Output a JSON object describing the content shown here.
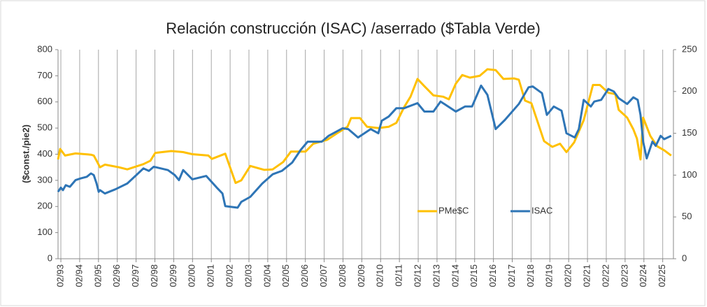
{
  "chart_data": {
    "type": "line",
    "title": "Relación construcción (ISAC) /aserrado ($Tabla Verde)",
    "y_label": "($const./pie2)",
    "xlim": [
      1992.93,
      2025.65
    ],
    "xticks": [
      {
        "value": 1993.08,
        "label": "02/93"
      },
      {
        "value": 1994.08,
        "label": "02/94"
      },
      {
        "value": 1995.08,
        "label": "02/95"
      },
      {
        "value": 1996.08,
        "label": "02/96"
      },
      {
        "value": 1997.08,
        "label": "02/97"
      },
      {
        "value": 1998.08,
        "label": "02/98"
      },
      {
        "value": 1999.08,
        "label": "02/99"
      },
      {
        "value": 2000.08,
        "label": "02/00"
      },
      {
        "value": 2001.08,
        "label": "02/01"
      },
      {
        "value": 2002.08,
        "label": "02/02"
      },
      {
        "value": 2003.08,
        "label": "02/03"
      },
      {
        "value": 2004.08,
        "label": "02/04"
      },
      {
        "value": 2005.08,
        "label": "02/05"
      },
      {
        "value": 2006.08,
        "label": "02/06"
      },
      {
        "value": 2007.08,
        "label": "02/07"
      },
      {
        "value": 2008.08,
        "label": "02/08"
      },
      {
        "value": 2009.08,
        "label": "02/09"
      },
      {
        "value": 2010.08,
        "label": "02/10"
      },
      {
        "value": 2011.08,
        "label": "02/11"
      },
      {
        "value": 2012.08,
        "label": "02/12"
      },
      {
        "value": 2013.08,
        "label": "02/13"
      },
      {
        "value": 2014.08,
        "label": "02/14"
      },
      {
        "value": 2015.08,
        "label": "02/15"
      },
      {
        "value": 2016.08,
        "label": "02/16"
      },
      {
        "value": 2017.08,
        "label": "02/17"
      },
      {
        "value": 2018.08,
        "label": "02/18"
      },
      {
        "value": 2019.08,
        "label": "02/19"
      },
      {
        "value": 2020.08,
        "label": "02/20"
      },
      {
        "value": 2021.08,
        "label": "02/21"
      },
      {
        "value": 2022.08,
        "label": "02/22"
      },
      {
        "value": 2023.08,
        "label": "02/23"
      },
      {
        "value": 2024.08,
        "label": "02/24"
      },
      {
        "value": 2025.08,
        "label": "02/25"
      }
    ],
    "ylim": [
      0,
      800
    ],
    "yticks": [
      0,
      100,
      200,
      300,
      400,
      500,
      600,
      700,
      800
    ],
    "y2lim": [
      0,
      250
    ],
    "y2ticks": [
      0,
      50,
      100,
      150,
      200,
      250
    ],
    "grid": "x",
    "series": [
      {
        "name": "PMe$C",
        "color": "#FFC000",
        "x": [
          1992.93,
          1993.04,
          1993.3,
          1993.86,
          1994.68,
          1994.83,
          1994.98,
          1995.16,
          1995.42,
          1996.17,
          1996.61,
          1997.47,
          1997.84,
          1998.1,
          1998.95,
          1999.58,
          2000.07,
          2000.92,
          2001.11,
          2001.82,
          2002.37,
          2002.67,
          2003.15,
          2003.9,
          2004.34,
          2004.9,
          2005.31,
          2006.09,
          2006.5,
          2007.24,
          2007.76,
          2008.32,
          2008.51,
          2008.99,
          2009.36,
          2009.96,
          2010.51,
          2010.92,
          2011.33,
          2011.67,
          2012.04,
          2012.41,
          2012.89,
          2013.41,
          2013.71,
          2014.08,
          2014.42,
          2014.83,
          2015.35,
          2015.76,
          2016.2,
          2016.61,
          2017.17,
          2017.43,
          2017.76,
          2018.1,
          2018.77,
          2019.21,
          2019.62,
          2019.96,
          2020.37,
          2020.88,
          2021.37,
          2021.74,
          2022.19,
          2022.56,
          2022.74,
          2023.19,
          2023.52,
          2023.71,
          2023.9,
          2024.04,
          2024.42,
          2024.79,
          2025.16,
          2025.53
        ],
        "values": [
          380,
          420,
          395,
          403,
          398,
          395,
          375,
          350,
          360,
          350,
          342,
          362,
          375,
          405,
          412,
          408,
          400,
          395,
          382,
          402,
          290,
          300,
          355,
          340,
          342,
          370,
          410,
          410,
          440,
          455,
          480,
          505,
          538,
          538,
          505,
          500,
          505,
          520,
          580,
          620,
          688,
          660,
          625,
          620,
          610,
          670,
          703,
          693,
          700,
          725,
          722,
          688,
          690,
          685,
          605,
          595,
          450,
          428,
          440,
          408,
          445,
          530,
          665,
          665,
          635,
          630,
          570,
          540,
          495,
          460,
          380,
          540,
          470,
          430,
          415,
          395
        ]
      },
      {
        "name": "ISAC",
        "color": "#2E75B6",
        "axis": "y2",
        "x": [
          1992.93,
          1993.08,
          1993.19,
          1993.34,
          1993.56,
          1993.86,
          1994.12,
          1994.46,
          1994.68,
          1994.83,
          1994.98,
          1995.09,
          1995.16,
          1995.42,
          1995.98,
          1996.61,
          1997.09,
          1997.47,
          1997.76,
          1998.02,
          1998.77,
          1999.14,
          1999.36,
          1999.58,
          2000.07,
          2000.81,
          2001.37,
          2001.67,
          2001.82,
          2002.48,
          2002.67,
          2003.15,
          2003.79,
          2004.34,
          2004.83,
          2005.38,
          2005.83,
          2006.2,
          2006.95,
          2007.32,
          2008.06,
          2008.36,
          2008.88,
          2009.55,
          2009.96,
          2010.14,
          2010.51,
          2010.92,
          2011.33,
          2012.04,
          2012.41,
          2012.89,
          2013.27,
          2014.08,
          2014.57,
          2014.94,
          2015.42,
          2015.76,
          2016.2,
          2016.69,
          2017.43,
          2017.95,
          2018.17,
          2018.66,
          2018.92,
          2019.29,
          2019.7,
          2019.96,
          2020.4,
          2020.62,
          2020.88,
          2021.26,
          2021.44,
          2021.81,
          2022.19,
          2022.48,
          2022.74,
          2023.19,
          2023.52,
          2023.75,
          2023.9,
          2024.04,
          2024.23,
          2024.53,
          2024.71,
          2024.97,
          2025.16,
          2025.53
        ],
        "values": [
          80,
          85,
          82,
          88,
          86,
          94,
          96,
          98,
          102,
          100,
          90,
          80,
          82,
          78,
          83,
          90,
          100,
          108,
          105,
          110,
          106,
          100,
          94,
          106,
          95,
          99,
          85,
          78,
          63,
          61,
          68,
          74,
          90,
          101,
          105,
          115,
          130,
          140,
          140,
          147,
          156,
          155,
          145,
          155,
          150,
          165,
          170,
          180,
          180,
          186,
          176,
          176,
          188,
          176,
          182,
          182,
          207,
          196,
          155,
          166,
          185,
          205,
          206,
          198,
          172,
          182,
          177,
          150,
          145,
          155,
          190,
          182,
          188,
          190,
          203,
          200,
          192,
          185,
          193,
          190,
          172,
          140,
          120,
          140,
          135,
          147,
          143,
          147
        ]
      }
    ]
  }
}
